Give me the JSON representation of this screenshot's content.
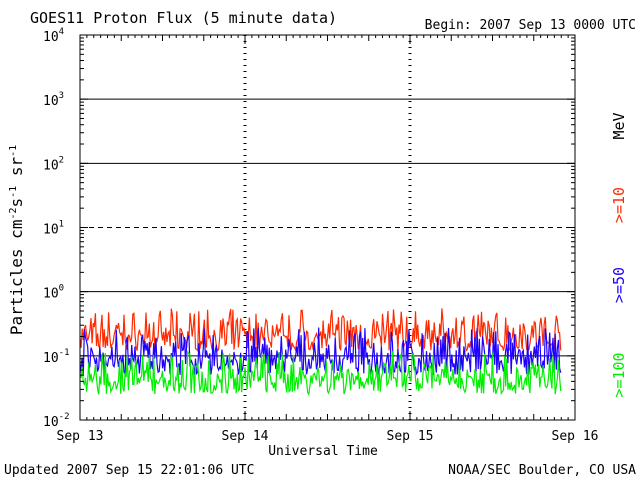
{
  "chart_data": {
    "type": "line",
    "title": "GOES11 Proton Flux (5 minute data)",
    "begin_label": "Begin: 2007 Sep 13 0000 UTC",
    "ylabel_base": "Particles cm",
    "ylabel_units_suffix": "s sr",
    "ylabel_exp1": "-2",
    "ylabel_exp2": "-1",
    "ylabel_exp3": "-1",
    "xlabel": "Universal Time",
    "xlim": [
      "2007-09-13T00:00",
      "2007-09-16T00:00"
    ],
    "ylim": [
      0.01,
      10000
    ],
    "yscale": "log",
    "y_ticks": [
      {
        "base": "10",
        "exp": "-2",
        "value": 0.01
      },
      {
        "base": "10",
        "exp": "-1",
        "value": 0.1
      },
      {
        "base": "10",
        "exp": "0",
        "value": 1
      },
      {
        "base": "10",
        "exp": "1",
        "value": 10
      },
      {
        "base": "10",
        "exp": "2",
        "value": 100
      },
      {
        "base": "10",
        "exp": "3",
        "value": 1000
      },
      {
        "base": "10",
        "exp": "4",
        "value": 10000
      }
    ],
    "x_ticks": [
      {
        "label": "Sep 13",
        "value": "2007-09-13T00:00"
      },
      {
        "label": "Sep 14",
        "value": "2007-09-14T00:00"
      },
      {
        "label": "Sep 15",
        "value": "2007-09-15T00:00"
      },
      {
        "label": "Sep 16",
        "value": "2007-09-16T00:00"
      }
    ],
    "reference_lines": [
      {
        "value": 0.1,
        "style": "solid"
      },
      {
        "value": 1,
        "style": "solid"
      },
      {
        "value": 10,
        "style": "dashed"
      },
      {
        "value": 100,
        "style": "solid"
      },
      {
        "value": 1000,
        "style": "solid"
      }
    ],
    "series": [
      {
        "name": ">=10",
        "color": "#ff2a00",
        "baseline": 0.2,
        "spread": [
          0.12,
          0.55
        ],
        "x_start": "2007-09-13T00:00",
        "x_end": "2007-09-15T22:00"
      },
      {
        "name": ">=50",
        "color": "#1f00ff",
        "baseline": 0.09,
        "spread": [
          0.05,
          0.28
        ],
        "x_start": "2007-09-13T00:00",
        "x_end": "2007-09-15T22:00"
      },
      {
        "name": ">=100",
        "color": "#00ee00",
        "baseline": 0.045,
        "spread": [
          0.025,
          0.12
        ],
        "x_start": "2007-09-13T00:00",
        "x_end": "2007-09-15T22:00"
      }
    ],
    "legend_unit": "MeV",
    "legend_position": "right"
  },
  "footer": {
    "updated": "Updated 2007 Sep 15 22:01:06 UTC",
    "credit": "NOAA/SEC Boulder, CO USA"
  },
  "colors": {
    "background": "#ffffff",
    "axis": "#000000",
    "ref_line": "#000000"
  }
}
